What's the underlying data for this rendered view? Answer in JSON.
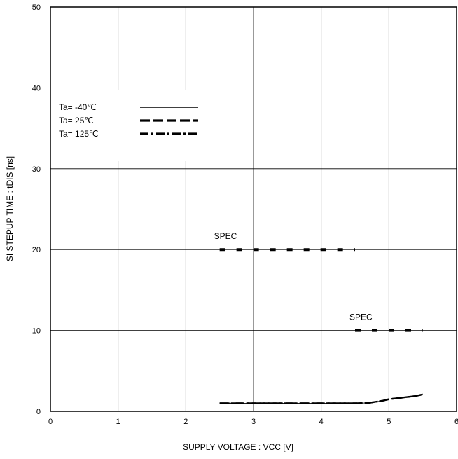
{
  "chart_data": {
    "type": "line",
    "xlabel": "SUPPLY VOLTAGE : VCC [V]",
    "ylabel": "SI STEPUP TIME : tDIS  [ns]",
    "xlim": [
      0,
      6
    ],
    "ylim": [
      0,
      50
    ],
    "x_ticks": [
      "0",
      "1",
      "2",
      "3",
      "4",
      "5",
      "6"
    ],
    "y_ticks": [
      "0",
      "10",
      "20",
      "30",
      "40",
      "50"
    ],
    "grid": true,
    "legend_position": "top-left",
    "series": [
      {
        "name": "Ta= -40℃",
        "style": "solid",
        "x": [
          2.5,
          3.0,
          3.5,
          4.0,
          4.5,
          4.7,
          4.9,
          5.0,
          5.2,
          5.4,
          5.5
        ],
        "y": [
          1.0,
          1.0,
          1.0,
          1.0,
          1.0,
          1.05,
          1.3,
          1.5,
          1.7,
          1.9,
          2.1
        ]
      },
      {
        "name": "Ta=  25℃",
        "style": "dashed",
        "x": [
          2.5,
          3.0,
          3.5,
          4.0,
          4.5,
          4.7,
          4.9,
          5.0,
          5.2,
          5.4,
          5.5
        ],
        "y": [
          1.0,
          1.0,
          1.0,
          1.0,
          1.0,
          1.05,
          1.3,
          1.5,
          1.7,
          1.9,
          2.1
        ]
      },
      {
        "name": "Ta= 125℃",
        "style": "dash-dot",
        "x": [
          2.5,
          3.0,
          3.5,
          4.0,
          4.5,
          4.7,
          4.9,
          5.0,
          5.2,
          5.4,
          5.5
        ],
        "y": [
          1.0,
          1.0,
          1.0,
          1.0,
          1.0,
          1.05,
          1.3,
          1.5,
          1.7,
          1.9,
          2.1
        ]
      }
    ],
    "spec_lines": [
      {
        "label": "SPEC",
        "x_start": 2.5,
        "x_end": 4.5,
        "y": 20
      },
      {
        "label": "SPEC",
        "x_start": 4.5,
        "x_end": 5.5,
        "y": 10
      }
    ]
  }
}
